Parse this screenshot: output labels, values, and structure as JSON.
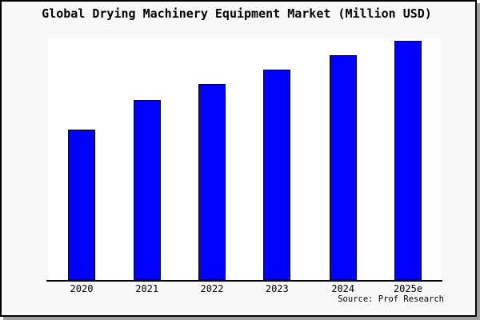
{
  "title": "Global Drying Machinery Equipment Market (Million USD)",
  "source": "Source: Prof Research",
  "colors": {
    "bar_fill": "#0000ff",
    "bar_border": "#000000",
    "page_bg": "#f8f8f8",
    "plot_bg": "#ffffff",
    "axis": "#000000",
    "page_border": "#000000",
    "shadow": "#a0a0a0",
    "text": "#000000"
  },
  "chart_data": {
    "type": "bar",
    "title": "Global Drying Machinery Equipment Market (Million USD)",
    "categories": [
      "2020",
      "2021",
      "2022",
      "2023",
      "2024",
      "2025e"
    ],
    "values": [
      188,
      225,
      245,
      263,
      281,
      299
    ],
    "units": "relative bar height (no value axis labeled in chart)",
    "xlabel": "",
    "ylabel": "",
    "ylim": [
      0,
      302
    ],
    "grid": false,
    "legend": false,
    "source": "Source: Prof Research"
  }
}
